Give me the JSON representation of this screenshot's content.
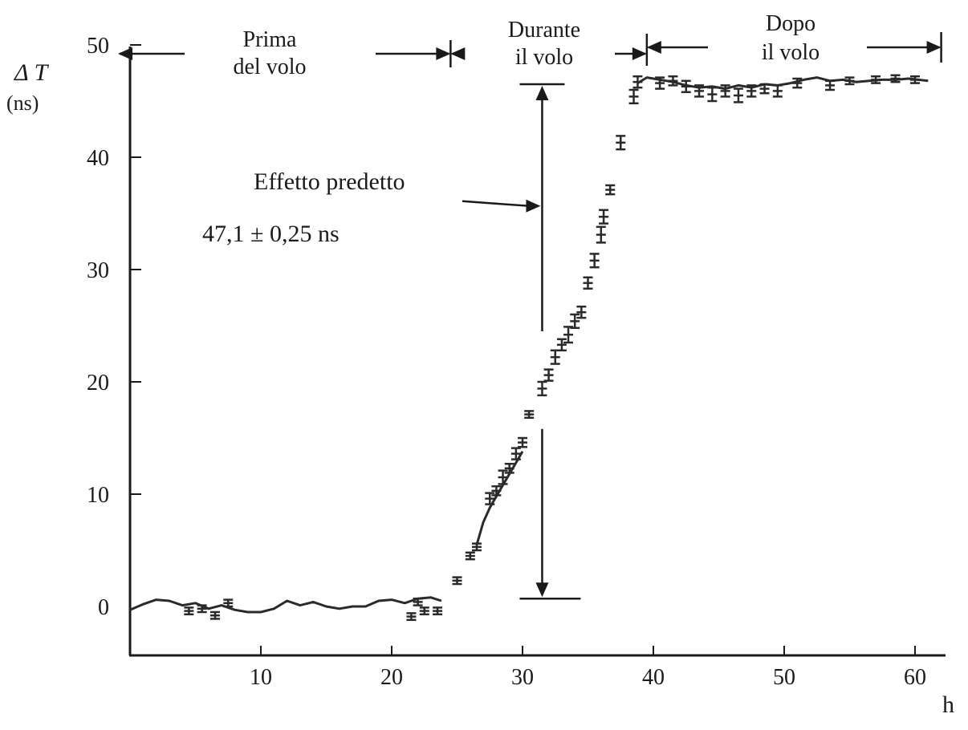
{
  "chart_data": {
    "type": "scatter",
    "title": "",
    "xlabel": "h",
    "ylabel": "Δ T",
    "ylabel_unit": "(ns)",
    "xlim": [
      0,
      63
    ],
    "ylim": [
      -5,
      50
    ],
    "x_ticks": [
      10,
      20,
      30,
      40,
      50,
      60
    ],
    "y_ticks": [
      0,
      10,
      20,
      30,
      40,
      50
    ],
    "grid": false,
    "phases": [
      {
        "label_line1": "Prima",
        "label_line2": "del volo",
        "x_start": -1,
        "x_end": 24.5
      },
      {
        "label_line1": "Durante",
        "label_line2": "il volo",
        "x_start": 24.5,
        "x_end": 39.5
      },
      {
        "label_line1": "Dopo",
        "label_line2": "il volo",
        "x_start": 39.5,
        "x_end": 62
      }
    ],
    "annotation": {
      "label": "Effetto predetto",
      "value_text": "47,1 ± 0,25 ns",
      "x": 31.5,
      "y_low": 0.7,
      "y_high": 46.5,
      "pointer_y": 35.8
    },
    "series": [
      {
        "kind": "continuous",
        "values": [
          [
            0,
            -0.3
          ],
          [
            1,
            0.2
          ],
          [
            2,
            0.6
          ],
          [
            3,
            0.5
          ],
          [
            4,
            0.1
          ],
          [
            5,
            0.3
          ],
          [
            6,
            -0.2
          ],
          [
            7,
            0.1
          ],
          [
            8,
            -0.3
          ],
          [
            9,
            -0.5
          ],
          [
            10,
            -0.5
          ],
          [
            11,
            -0.2
          ],
          [
            12,
            0.5
          ],
          [
            13,
            0.1
          ],
          [
            14,
            0.4
          ],
          [
            15,
            0.0
          ],
          [
            16,
            -0.2
          ],
          [
            17,
            0.0
          ],
          [
            18,
            0.0
          ],
          [
            19,
            0.5
          ],
          [
            20,
            0.6
          ],
          [
            21,
            0.3
          ],
          [
            22,
            0.7
          ],
          [
            23,
            0.8
          ],
          [
            23.8,
            0.5
          ]
        ]
      },
      {
        "kind": "points_with_error_bars",
        "values": [
          [
            4.5,
            -0.4,
            0.3
          ],
          [
            5.5,
            -0.2,
            0.3
          ],
          [
            6.5,
            -0.8,
            0.3
          ],
          [
            7.5,
            0.3,
            0.3
          ],
          [
            21.5,
            -0.9,
            0.3
          ],
          [
            22,
            0.4,
            0.3
          ],
          [
            22.5,
            -0.4,
            0.3
          ],
          [
            23.5,
            -0.4,
            0.3
          ],
          [
            25,
            2.3,
            0.3
          ],
          [
            26,
            4.5,
            0.3
          ],
          [
            26.5,
            5.3,
            0.3
          ],
          [
            27.5,
            9.6,
            0.5
          ],
          [
            28,
            10.3,
            0.4
          ],
          [
            28.5,
            11.5,
            0.6
          ],
          [
            29,
            12.3,
            0.4
          ],
          [
            29.5,
            13.6,
            0.5
          ],
          [
            30,
            14.6,
            0.4
          ],
          [
            30.5,
            17.1,
            0.3
          ],
          [
            31.5,
            19.4,
            0.6
          ],
          [
            32,
            20.6,
            0.5
          ],
          [
            32.5,
            22.2,
            0.6
          ],
          [
            33,
            23.3,
            0.5
          ],
          [
            33.5,
            24.2,
            0.7
          ],
          [
            34,
            25.4,
            0.6
          ],
          [
            34.5,
            26.2,
            0.5
          ],
          [
            35,
            28.8,
            0.5
          ],
          [
            35.5,
            30.8,
            0.6
          ],
          [
            36,
            33.1,
            0.7
          ],
          [
            36.2,
            34.7,
            0.6
          ],
          [
            36.7,
            37.1,
            0.4
          ],
          [
            37.5,
            41.3,
            0.6
          ],
          [
            38.5,
            45.4,
            0.6
          ],
          [
            38.8,
            46.7,
            0.5
          ],
          [
            40.5,
            46.6,
            0.5
          ],
          [
            41.5,
            46.8,
            0.4
          ],
          [
            42.5,
            46.3,
            0.5
          ],
          [
            43.5,
            45.9,
            0.5
          ],
          [
            44.5,
            45.6,
            0.6
          ],
          [
            45.5,
            45.9,
            0.5
          ],
          [
            46.5,
            45.5,
            0.6
          ],
          [
            47.5,
            45.9,
            0.5
          ],
          [
            48.5,
            46.1,
            0.4
          ],
          [
            49.5,
            45.9,
            0.5
          ],
          [
            51,
            46.6,
            0.4
          ],
          [
            53.5,
            46.4,
            0.4
          ],
          [
            55,
            46.8,
            0.3
          ],
          [
            57,
            46.9,
            0.3
          ],
          [
            58.5,
            47.0,
            0.3
          ],
          [
            60,
            46.9,
            0.3
          ]
        ]
      },
      {
        "kind": "continuous",
        "values": [
          [
            38.8,
            46.6
          ],
          [
            39.5,
            47.1
          ],
          [
            40.5,
            46.9
          ],
          [
            41.5,
            46.7
          ],
          [
            42.5,
            46.4
          ],
          [
            43.5,
            46.2
          ],
          [
            44.5,
            46.3
          ],
          [
            45.5,
            46.1
          ],
          [
            46.5,
            46.4
          ],
          [
            47.5,
            46.2
          ],
          [
            48.5,
            46.5
          ],
          [
            49.5,
            46.4
          ],
          [
            50.5,
            46.6
          ],
          [
            51.5,
            46.9
          ],
          [
            52.5,
            47.1
          ],
          [
            53.5,
            46.8
          ],
          [
            54.5,
            46.9
          ],
          [
            55.5,
            46.7
          ],
          [
            56.5,
            46.8
          ],
          [
            57.5,
            46.9
          ],
          [
            58.5,
            46.9
          ],
          [
            59.5,
            47.0
          ],
          [
            61,
            46.8
          ]
        ]
      },
      {
        "kind": "continuous",
        "values": [
          [
            26.5,
            5.5
          ],
          [
            27,
            7.5
          ],
          [
            27.5,
            8.8
          ],
          [
            28,
            9.8
          ],
          [
            28.5,
            10.8
          ],
          [
            29,
            11.8
          ],
          [
            29.5,
            12.8
          ],
          [
            30,
            13.8
          ]
        ]
      }
    ]
  }
}
